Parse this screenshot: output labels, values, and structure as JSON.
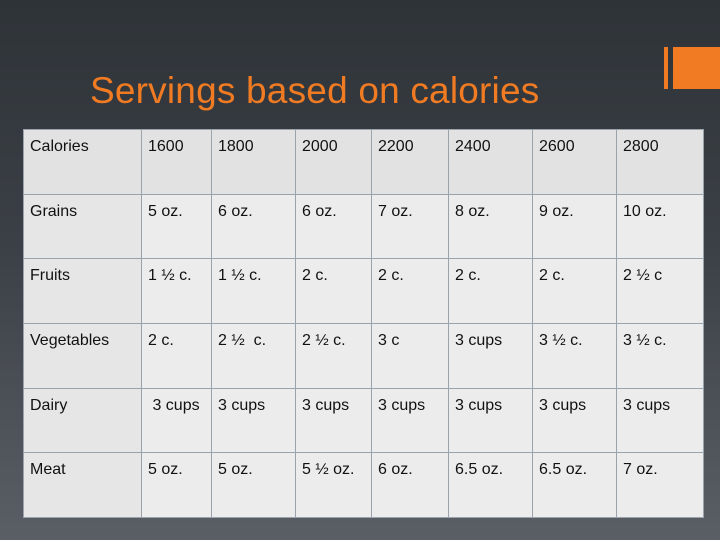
{
  "slide": {
    "title": "Servings based on calories"
  },
  "colors": {
    "accent": "#f07b22",
    "background": "#3b4046",
    "table_fill": "#ececec",
    "table_border": "#9aa3ab"
  },
  "table": {
    "header": [
      "Calories",
      "1600",
      "1800",
      "2000",
      "2200",
      "2400",
      "2600",
      "2800"
    ],
    "rows": [
      [
        "Grains",
        "5 oz.",
        "6 oz.",
        "6 oz.",
        "7 oz.",
        "8 oz.",
        "9 oz.",
        "10 oz."
      ],
      [
        "Fruits",
        "1 ½ c.",
        "1 ½ c.",
        "2 c.",
        "2 c.",
        "2 c.",
        "2 c.",
        "2 ½ c"
      ],
      [
        "Vegetables",
        "2 c.",
        "2 ½  c.",
        "2 ½ c.",
        "3 c",
        "3 cups",
        "3 ½ c.",
        "3 ½ c."
      ],
      [
        "Dairy",
        " 3 cups",
        "3 cups",
        "3 cups",
        "3 cups",
        "3 cups",
        "3 cups",
        "3 cups"
      ],
      [
        "Meat",
        "5 oz.",
        "5 oz.",
        "5 ½ oz.",
        "6 oz.",
        "6.5 oz.",
        "6.5 oz.",
        "7 oz."
      ]
    ]
  }
}
